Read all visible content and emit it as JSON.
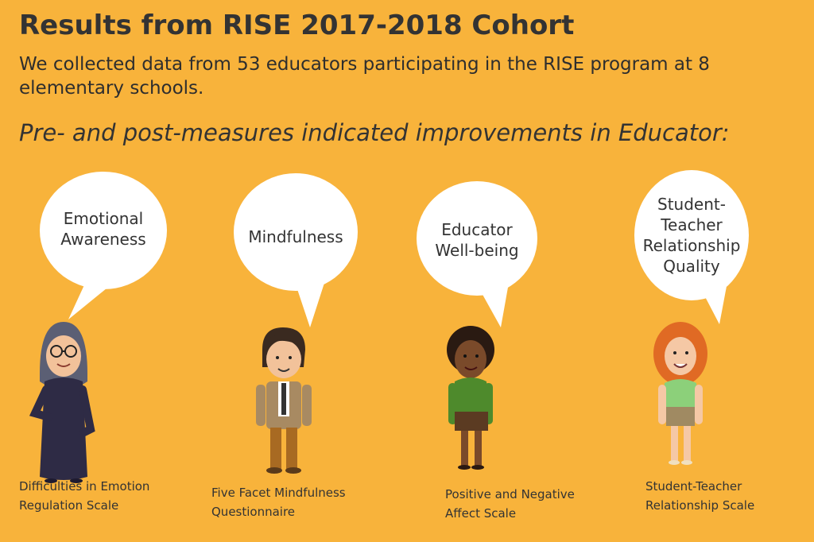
{
  "header": {
    "title": "Results from RISE 2017-2018 Cohort",
    "intro": " We collected data from 53 educators participating in the RISE program at 8 elementary schools.",
    "subtitle": "Pre- and post-measures indicated improvements in Educator:"
  },
  "colors": {
    "background": "#F8B33B",
    "bubble": "#FFFFFF",
    "text": "#333333"
  },
  "measures": [
    {
      "bubble_lines": [
        "Emotional",
        "Awareness"
      ],
      "scale_lines": [
        "Difficulties in Emotion",
        "Regulation Scale"
      ],
      "figure": "woman-in-hijab-icon"
    },
    {
      "bubble_lines": [
        "Mindfulness"
      ],
      "scale_lines": [
        "Five Facet Mindfulness",
        "Questionnaire"
      ],
      "figure": "man-in-suit-icon"
    },
    {
      "bubble_lines": [
        "Educator",
        "Well-being"
      ],
      "scale_lines": [
        "Positive and Negative",
        "Affect Scale"
      ],
      "figure": "woman-green-sweater-icon"
    },
    {
      "bubble_lines": [
        "Student-",
        "Teacher",
        "Relationship",
        "Quality"
      ],
      "scale_lines": [
        "Student-Teacher",
        "Relationship Scale"
      ],
      "figure": "woman-red-hair-icon"
    }
  ]
}
